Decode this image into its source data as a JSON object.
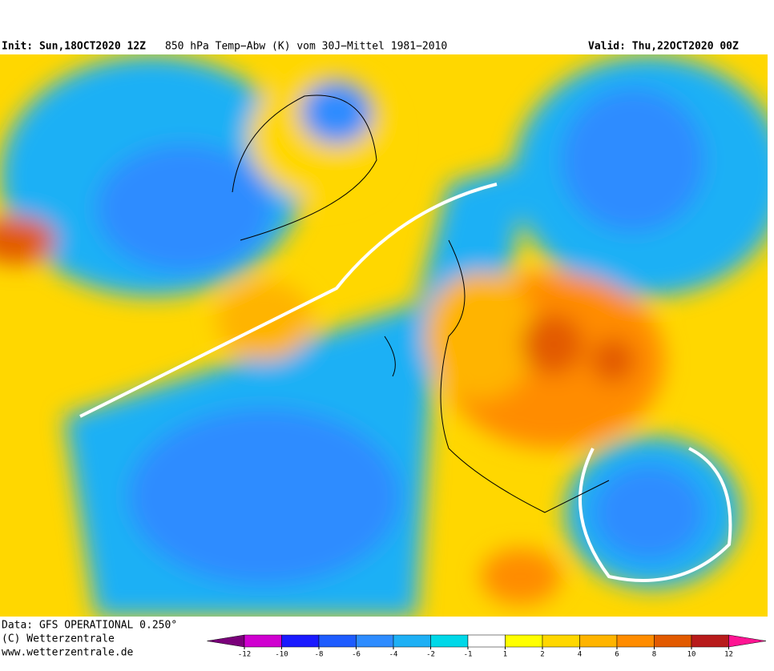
{
  "header": {
    "init": "Init: Sun,18OCT2020 12Z",
    "title": "850 hPa Temp−Abw (K) vom 30J−Mittel 1981−2010",
    "valid": "Valid: Thu,22OCT2020 00Z"
  },
  "footer": {
    "data": "Data: GFS OPERATIONAL 0.250°",
    "copyright": "(C) Wetterzentrale",
    "url": "www.wetterzentrale.de"
  },
  "colorbar": {
    "ticks": [
      -12,
      -10,
      -8,
      -6,
      -4,
      -2,
      -1,
      1,
      2,
      4,
      6,
      8,
      10,
      12
    ],
    "colors": [
      "#7a007a",
      "#d000d0",
      "#1a1aff",
      "#1e5cff",
      "#2e8cff",
      "#1eb0f5",
      "#00d8e8",
      "#ffffff",
      "#ffff00",
      "#ffd700",
      "#ffb400",
      "#ff8c00",
      "#e25a00",
      "#b81b1b",
      "#ff1493"
    ]
  }
}
